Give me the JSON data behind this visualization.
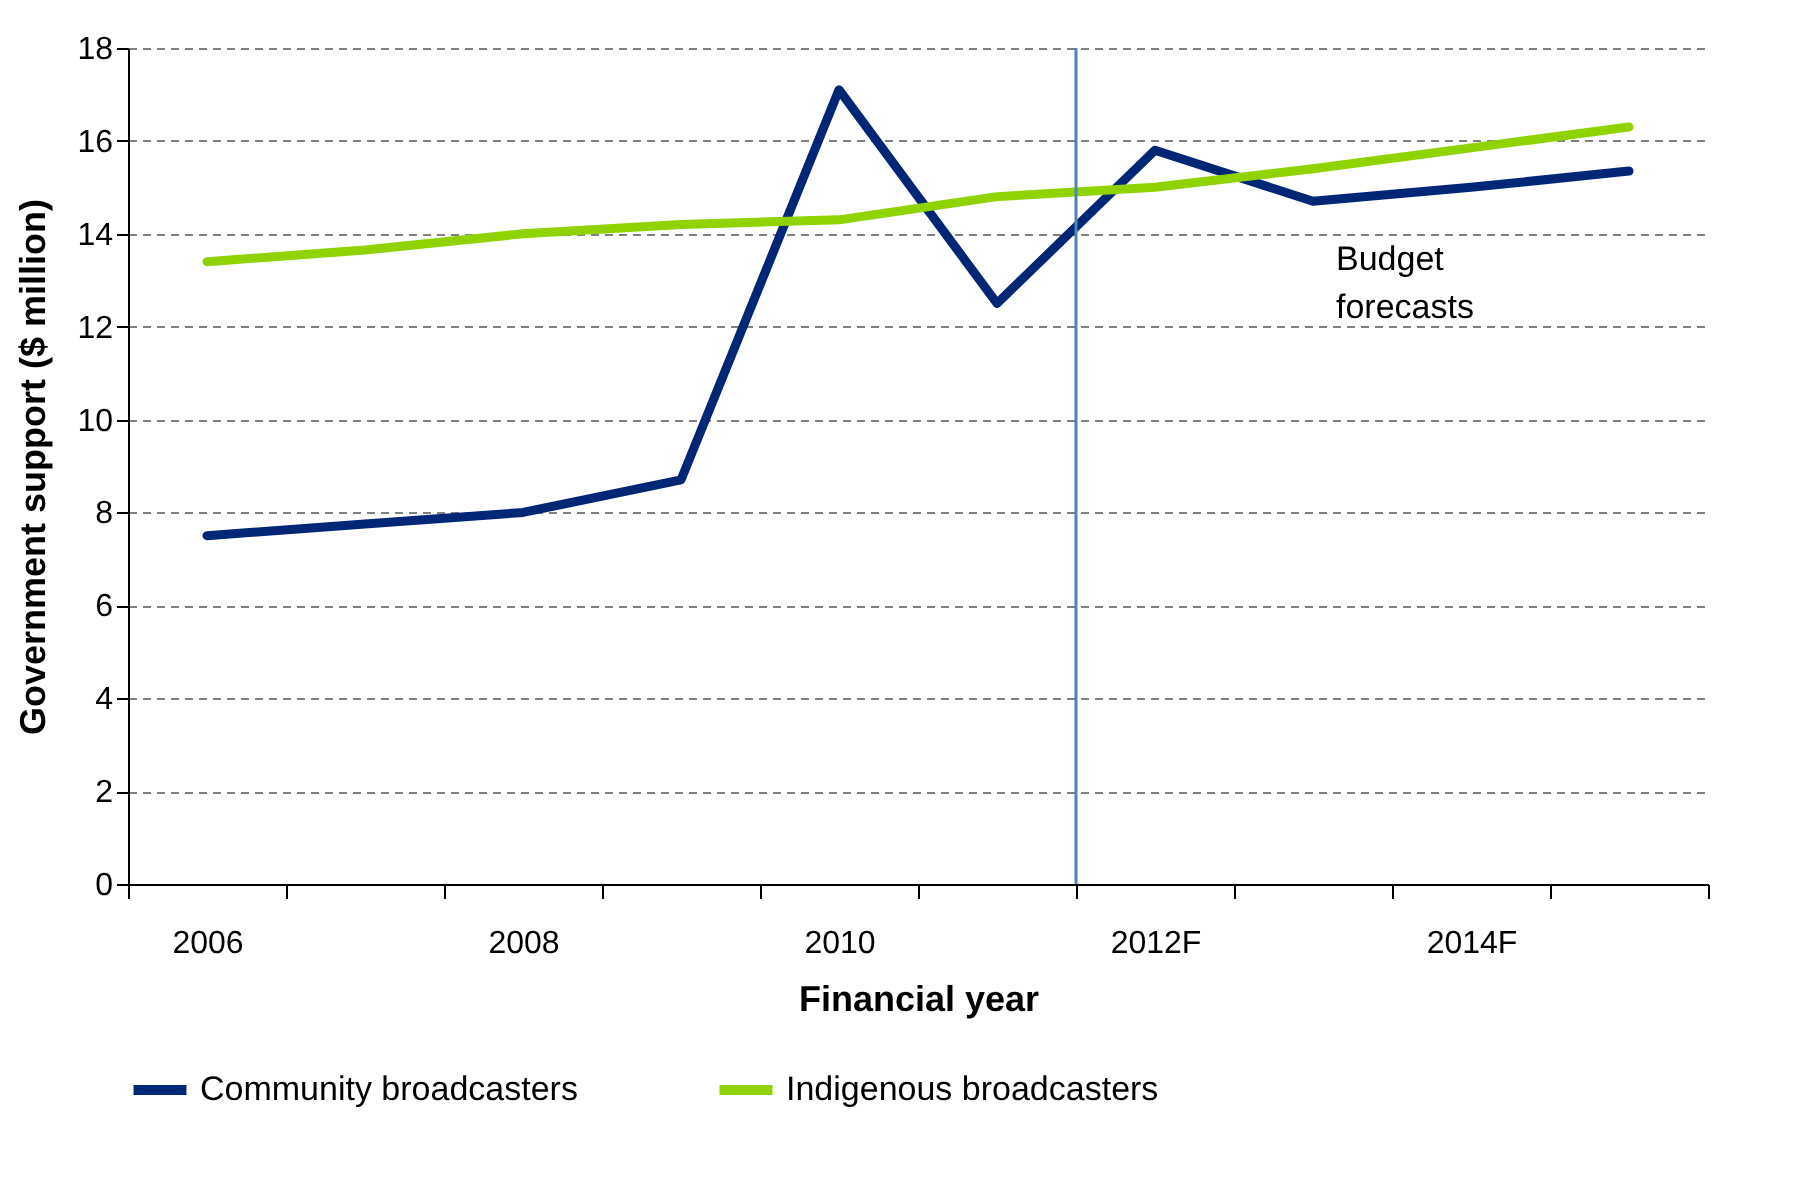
{
  "chart_data": {
    "type": "line",
    "xlabel": "Financial year",
    "ylabel": "Government support ($ million)",
    "categories": [
      "2006",
      null,
      "2008",
      null,
      "2010",
      null,
      "2012F",
      null,
      "2014F",
      null
    ],
    "series": [
      {
        "name": "Community broadcasters",
        "color": "#002776",
        "values": [
          7.5,
          7.75,
          8.0,
          8.7,
          17.1,
          12.5,
          15.8,
          14.7,
          15.0,
          15.35
        ]
      },
      {
        "name": "Indigenous broadcasters",
        "color": "#8fd400",
        "values": [
          13.4,
          13.65,
          14.0,
          14.2,
          14.3,
          14.8,
          15.0,
          15.4,
          15.85,
          16.3
        ]
      }
    ],
    "ylim": [
      0,
      18
    ],
    "yticks": [
      0,
      2,
      4,
      6,
      8,
      10,
      12,
      14,
      16,
      18
    ],
    "grid": "y",
    "legend": "bottom",
    "line_style": "solid",
    "annotations": [
      "Budget forecasts"
    ],
    "ref_lines": [
      {
        "axis": "x",
        "value": "2012F",
        "color": "#4f81bd"
      }
    ]
  }
}
